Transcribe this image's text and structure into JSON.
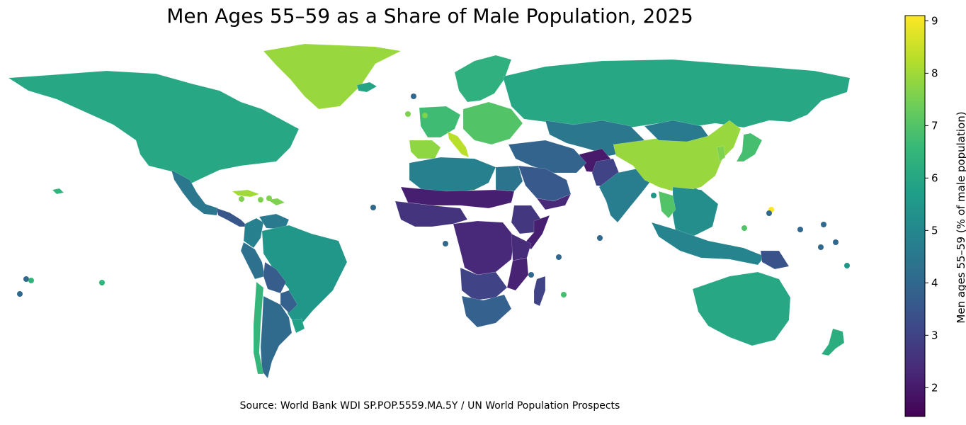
{
  "title": "Men Ages 55–59 as a Share of Male Population, 2025",
  "source": "Source: World Bank WDI SP.POP.5559.MA.5Y / UN World Population Prospects",
  "colorbar": {
    "label": "Men ages 55–59 (% of male population)",
    "min": 1.45,
    "max": 9.1,
    "ticks": [
      "2",
      "3",
      "4",
      "5",
      "6",
      "7",
      "8",
      "9"
    ],
    "tick_values": [
      2,
      3,
      4,
      5,
      6,
      7,
      8,
      9
    ],
    "colormap": "viridis",
    "stops": [
      "#440154",
      "#482878",
      "#3e4989",
      "#31688e",
      "#26828e",
      "#1f9e89",
      "#35b779",
      "#6ece58",
      "#b5de2b",
      "#fde725"
    ]
  },
  "chart_data": {
    "type": "choropleth",
    "year": 2025,
    "regions": [
      {
        "name": "Canada / USA",
        "value": 6.0
      },
      {
        "name": "Greenland",
        "value": 7.9
      },
      {
        "name": "Mexico",
        "value": 4.5
      },
      {
        "name": "Central America",
        "value": 3.5
      },
      {
        "name": "Cuba",
        "value": 8.0
      },
      {
        "name": "Colombia",
        "value": 4.8
      },
      {
        "name": "Venezuela",
        "value": 4.6
      },
      {
        "name": "Brazil",
        "value": 5.5
      },
      {
        "name": "Peru",
        "value": 4.3
      },
      {
        "name": "Bolivia",
        "value": 3.7
      },
      {
        "name": "Paraguay",
        "value": 3.8
      },
      {
        "name": "Argentina",
        "value": 4.1
      },
      {
        "name": "Chile",
        "value": 6.5
      },
      {
        "name": "Uruguay",
        "value": 5.8
      },
      {
        "name": "Western Europe",
        "value": 6.7
      },
      {
        "name": "Italy",
        "value": 8.3
      },
      {
        "name": "Spain",
        "value": 7.8
      },
      {
        "name": "Scandinavia",
        "value": 6.3
      },
      {
        "name": "Eastern Europe",
        "value": 7.0
      },
      {
        "name": "Russia",
        "value": 6.0
      },
      {
        "name": "Central Asia",
        "value": 4.5
      },
      {
        "name": "Afghanistan",
        "value": 2.0
      },
      {
        "name": "Pakistan",
        "value": 3.0
      },
      {
        "name": "India",
        "value": 4.7
      },
      {
        "name": "China",
        "value": 7.9
      },
      {
        "name": "Mongolia",
        "value": 4.6
      },
      {
        "name": "Japan",
        "value": 6.8
      },
      {
        "name": "Korea",
        "value": 7.6
      },
      {
        "name": "Southeast Asia",
        "value": 5.2
      },
      {
        "name": "Thailand",
        "value": 7.0
      },
      {
        "name": "Indonesia",
        "value": 4.9
      },
      {
        "name": "Papua New Guinea",
        "value": 3.4
      },
      {
        "name": "Australia",
        "value": 6.0
      },
      {
        "name": "New Zealand",
        "value": 6.2
      },
      {
        "name": "North Africa",
        "value": 4.8
      },
      {
        "name": "Egypt",
        "value": 4.4
      },
      {
        "name": "Middle East",
        "value": 3.9
      },
      {
        "name": "Saudi Arabia",
        "value": 3.6
      },
      {
        "name": "Yemen",
        "value": 2.3
      },
      {
        "name": "Sahel",
        "value": 2.1
      },
      {
        "name": "West Africa",
        "value": 2.6
      },
      {
        "name": "Central Africa",
        "value": 2.3
      },
      {
        "name": "Ethiopia",
        "value": 2.7
      },
      {
        "name": "Somalia",
        "value": 2.1
      },
      {
        "name": "East Africa",
        "value": 2.4
      },
      {
        "name": "Southern Africa",
        "value": 3.0
      },
      {
        "name": "South Africa",
        "value": 3.8
      },
      {
        "name": "Madagascar",
        "value": 3.0
      },
      {
        "name": "Mozambique",
        "value": 2.2
      },
      {
        "name": "Iceland",
        "value": 5.9
      },
      {
        "name": "Puerto Rico",
        "value": 7.6
      },
      {
        "name": "Mauritius",
        "value": 6.8
      },
      {
        "name": "Guam",
        "value": 9.1
      },
      {
        "name": "Hawaii",
        "value": 6.4
      },
      {
        "name": "Pacific islands",
        "value": 4.0
      }
    ]
  }
}
